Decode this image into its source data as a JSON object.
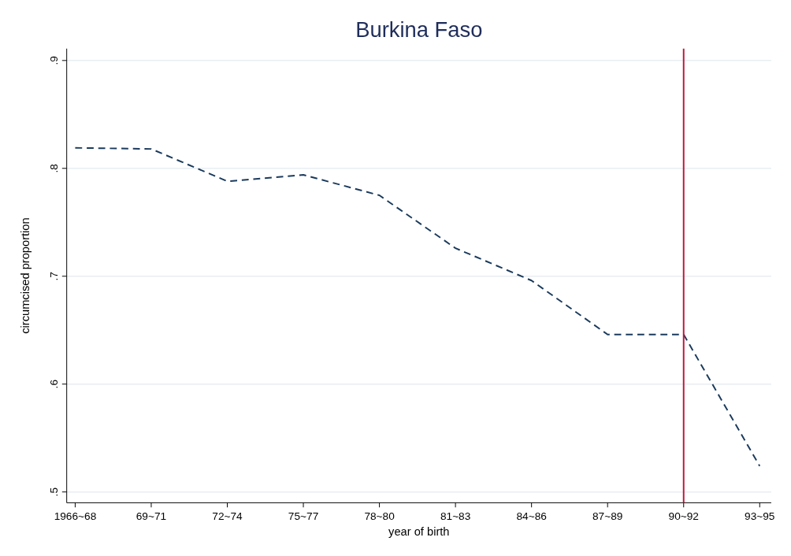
{
  "chart_data": {
    "type": "line",
    "title": "Burkina Faso",
    "xlabel": "year of birth",
    "ylabel": "circumcised proportion",
    "categories": [
      "1966~68",
      "69~71",
      "72~74",
      "75~77",
      "78~80",
      "81~83",
      "84~86",
      "87~89",
      "90~92",
      "93~95"
    ],
    "series": [
      {
        "color": "#1a3a5c",
        "values": [
          0.819,
          0.818,
          0.788,
          0.794,
          0.775,
          0.726,
          0.696,
          0.646,
          0.646,
          0.524
        ]
      }
    ],
    "line_style": "dashed",
    "marker": "none",
    "grid": "y",
    "ylim": [
      0.49,
      0.911
    ],
    "yticks": [
      {
        "value": 0.5,
        "label": ".5"
      },
      {
        "value": 0.6,
        "label": ".6"
      },
      {
        "value": 0.7,
        "label": ".7"
      },
      {
        "value": 0.8,
        "label": ".8"
      },
      {
        "value": 0.9,
        "label": ".9"
      }
    ],
    "ref_lines": [
      {
        "axis": "x",
        "value": "90~92",
        "color": "#c0143c",
        "line_style": "solid"
      }
    ]
  }
}
